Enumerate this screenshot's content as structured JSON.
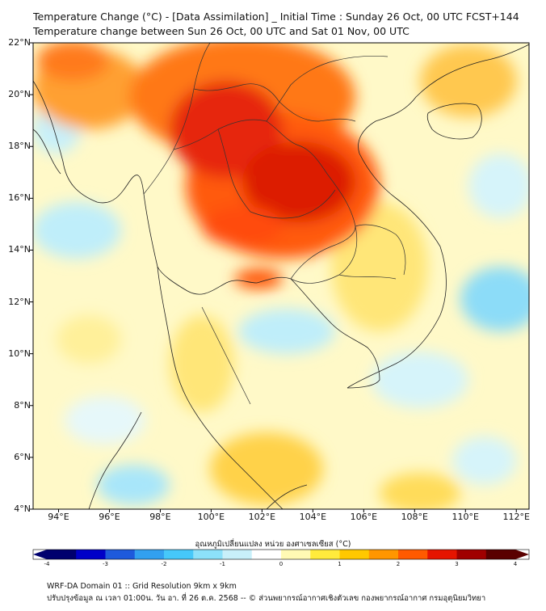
{
  "header": {
    "title_line1": "Temperature Change (°C) - [Data Assimilation] _ Initial Time : Sunday 26 Oct, 00 UTC FCST+144",
    "title_line2": "Temperature change between Sun 26 Oct, 00 UTC and Sat 01 Nov, 00 UTC"
  },
  "map": {
    "lat_labels": [
      "22°N",
      "20°N",
      "18°N",
      "16°N",
      "14°N",
      "12°N",
      "10°N",
      "8°N",
      "6°N",
      "4°N"
    ],
    "lon_labels": [
      "94°E",
      "96°E",
      "98°E",
      "100°E",
      "102°E",
      "104°E",
      "106°E",
      "108°E",
      "110°E",
      "112°E"
    ],
    "lat_range": [
      4,
      22
    ],
    "lon_range": [
      93,
      112.5
    ]
  },
  "colorbar": {
    "label": "อุณหภูมิเปลี่ยนแปลง หน่วย องศาเซลเซียส (°C)",
    "ticks": [
      "-4",
      "-3",
      "-2",
      "-1",
      "0",
      "1",
      "2",
      "3",
      "4"
    ],
    "range": [
      -4,
      4
    ],
    "colors": [
      "#00006e",
      "#0000c8",
      "#1e5adc",
      "#32a0f0",
      "#46c8fa",
      "#8ce1fa",
      "#c8f0fa",
      "#ffffff",
      "#fffab4",
      "#ffeb3c",
      "#ffc800",
      "#ff9600",
      "#ff5a00",
      "#e61400",
      "#a00000",
      "#5a0000"
    ]
  },
  "footer": {
    "line1": "WRF-DA Domain 01 :: Grid Resolution 9km x 9km",
    "line2": "ปรับปรุงข้อมูล ณ เวลา 01:00น. วัน อา. ที่ 26 ต.ค. 2568 -- © ส่วนพยากรณ์อากาศเชิงตัวเลข กองพยากรณ์อากาศ กรมอุตุนิยมวิทยา"
  }
}
